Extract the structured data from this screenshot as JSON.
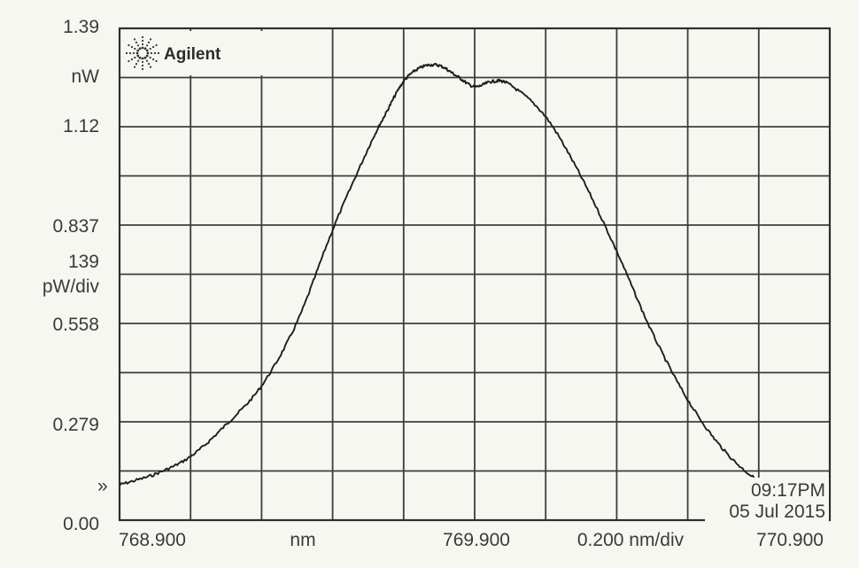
{
  "instrument": {
    "brand": "Agilent",
    "time": "09:17PM",
    "date": "05 Jul 2015",
    "marker": "»"
  },
  "y_axis": {
    "top_value": "1.39",
    "unit": "nW",
    "scale_value": "139",
    "scale_unit": "pW/div",
    "ticks": [
      "1.39",
      "1.12",
      "0.837",
      "0.558",
      "0.279",
      "0.00"
    ]
  },
  "x_axis": {
    "start": "768.900",
    "unit": "nm",
    "center": "769.900",
    "span_per_div": "0.200 nm/div",
    "stop": "770.900"
  },
  "chart_data": {
    "type": "line",
    "xlabel": "nm",
    "ylabel": "nW",
    "xlim": [
      768.9,
      770.9
    ],
    "ylim": [
      0.0,
      1.39
    ],
    "x_divisions": 10,
    "y_divisions": 10,
    "grid": true,
    "series": [
      {
        "x": [
          768.9,
          769.0,
          769.1,
          769.2,
          769.3,
          769.4,
          769.5,
          769.6,
          769.65,
          769.7,
          769.75,
          769.8,
          769.85,
          769.9,
          769.95,
          770.0,
          770.1,
          770.2,
          770.3,
          770.4,
          770.5,
          770.6,
          770.7,
          770.8,
          770.9
        ],
        "y": [
          0.1,
          0.13,
          0.18,
          0.27,
          0.38,
          0.56,
          0.82,
          1.05,
          1.15,
          1.24,
          1.28,
          1.285,
          1.255,
          1.225,
          1.24,
          1.23,
          1.14,
          0.97,
          0.76,
          0.53,
          0.34,
          0.2,
          0.11,
          0.06,
          0.05
        ]
      }
    ]
  }
}
